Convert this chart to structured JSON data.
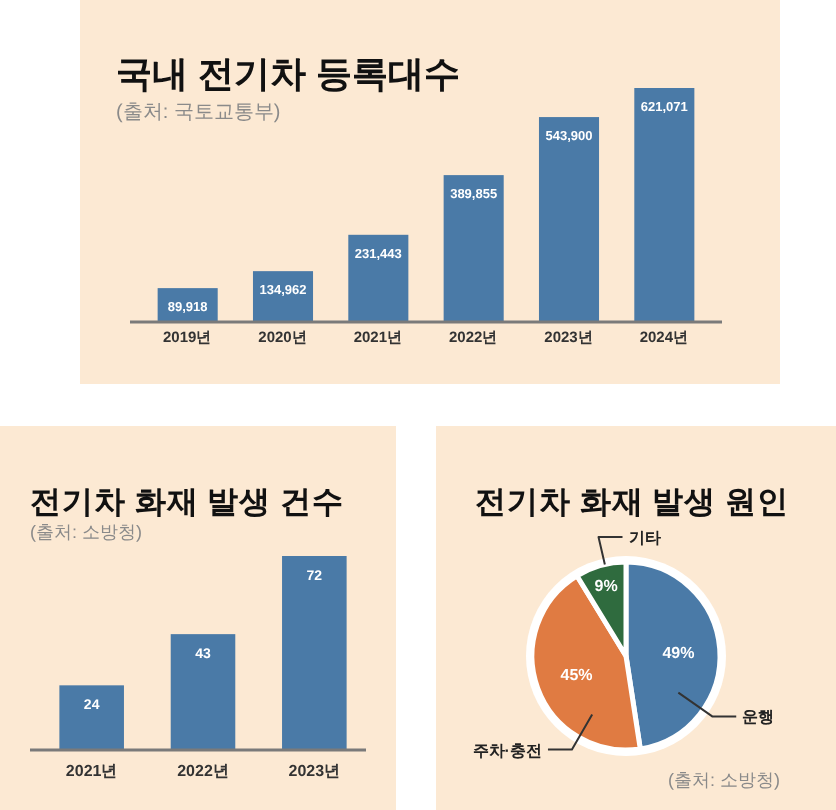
{
  "chart_data": [
    {
      "type": "bar",
      "title": "국내 전기차 등록대수",
      "subtitle": "(출처: 국토교통부)",
      "categories": [
        "2019년",
        "2020년",
        "2021년",
        "2022년",
        "2023년",
        "2024년"
      ],
      "values": [
        89918,
        134962,
        231443,
        389855,
        543900,
        621071
      ],
      "color": "#4a7aa7",
      "value_labels": [
        "89,918",
        "134,962",
        "231,443",
        "389,855",
        "543,900",
        "621,071"
      ]
    },
    {
      "type": "bar",
      "title": "전기차 화재 발생 건수",
      "subtitle": "(출처: 소방청)",
      "categories": [
        "2021년",
        "2022년",
        "2023년"
      ],
      "values": [
        24,
        43,
        72
      ],
      "color": "#4a7aa7",
      "data_labels": true
    },
    {
      "type": "pie",
      "title": "전기차 화재 발생 원인",
      "categories": [
        "운행",
        "주차·충전",
        "기타"
      ],
      "values": [
        49,
        45,
        9
      ],
      "colors": [
        "#4a7aa7",
        "#e07b42",
        "#2f6b3e"
      ],
      "value_labels": [
        "49%",
        "45%",
        "9%"
      ],
      "annotations": [
        "(출처: 소방청)"
      ]
    }
  ]
}
